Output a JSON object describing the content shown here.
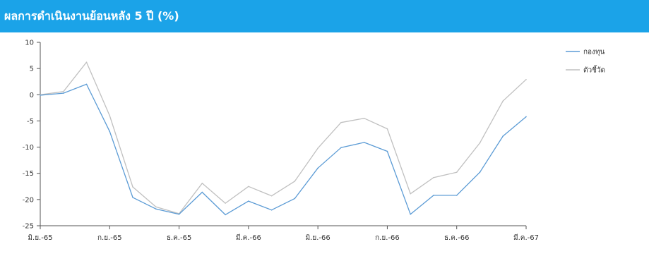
{
  "header": {
    "title": "ผลการดำเนินงานย้อนหลัง 5 ปี (%)"
  },
  "colors": {
    "header_bg": "#1ba3e8",
    "fund": "#5b9bd5",
    "benchmark": "#c0c0c0",
    "axis": "#555555"
  },
  "chart_data": {
    "type": "line",
    "title": "",
    "xlabel": "",
    "ylabel": "",
    "ylim": [
      -25,
      10
    ],
    "yticks": [
      10,
      5,
      0,
      -5,
      -10,
      -15,
      -20,
      -25
    ],
    "xticks": [
      "มิ.ย.-65",
      "ก.ย.-65",
      "ธ.ค.-65",
      "มี.ค.-66",
      "มิ.ย.-66",
      "ก.ย.-66",
      "ธ.ค.-66",
      "มี.ค.-67"
    ],
    "grid": false,
    "legend": "top-right",
    "n_points": 22,
    "series": [
      {
        "name": "กองทุน",
        "color": "#5b9bd5",
        "values": [
          -0.1,
          0.3,
          2.0,
          -7.0,
          -19.6,
          -21.8,
          -22.8,
          -18.6,
          -22.9,
          -20.3,
          -22.0,
          -19.8,
          -14.0,
          -10.1,
          -9.1,
          -10.8,
          -22.8,
          -19.2,
          -19.2,
          -14.8,
          -7.9,
          -4.2
        ]
      },
      {
        "name": "ตัวชี้วัด",
        "color": "#c0c0c0",
        "values": [
          0.0,
          0.6,
          6.2,
          -4.0,
          -17.6,
          -21.4,
          -22.7,
          -16.9,
          -20.7,
          -17.5,
          -19.3,
          -16.5,
          -10.2,
          -5.3,
          -4.5,
          -6.5,
          -18.9,
          -15.8,
          -14.8,
          -9.2,
          -1.2,
          2.9
        ]
      }
    ]
  }
}
